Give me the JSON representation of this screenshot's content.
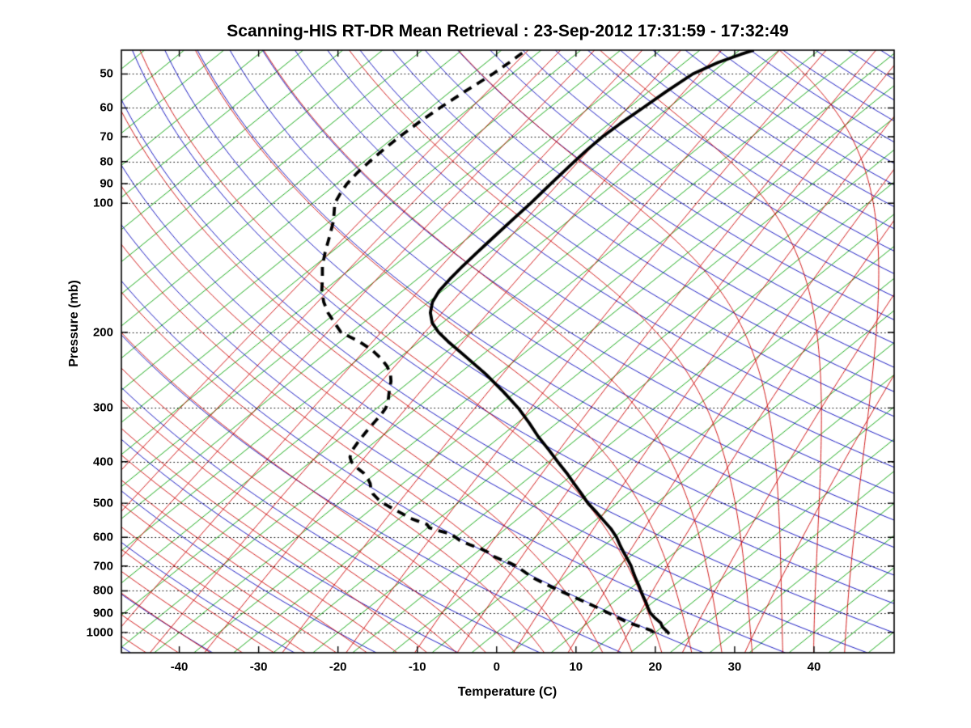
{
  "header": {
    "title": "Scanning-HIS RT-DR Mean Retrieval : 23-Sep-2012 17:31:59 - 17:32:49"
  },
  "axes": {
    "x_label": "Temperature (C)",
    "y_label": "Pressure (mb)"
  },
  "chart_data": {
    "type": "line",
    "diagram": "skew-t-log-p",
    "title": "Scanning-HIS RT-DR Mean Retrieval : 23-Sep-2012 17:31:59 - 17:32:49",
    "xlabel": "Temperature (C)",
    "ylabel": "Pressure (mb)",
    "x_ticks_c": [
      -40,
      -30,
      -20,
      -10,
      0,
      10,
      20,
      30,
      40
    ],
    "pressure_ticks_mb": [
      50,
      60,
      70,
      80,
      90,
      100,
      200,
      300,
      400,
      500,
      600,
      700,
      800,
      900,
      1000
    ],
    "xlim_c_at_1000mb": [
      -47.3,
      50.1
    ],
    "plim_mb": [
      44,
      1115
    ],
    "skew_c_per_decade": 66.8,
    "grid": {
      "pressure_lines_style": "dotted",
      "color": "#000000"
    },
    "background": {
      "isotherms_c": {
        "min": -150,
        "max": 55,
        "step": 5,
        "color": "#00A000"
      },
      "dry_adiabats_theta_c": {
        "min": -60,
        "max": 300,
        "step": 10,
        "color": "#0000BB"
      },
      "moist_adiabats_thetaw_c": {
        "min": -56,
        "max": 44,
        "step": 4,
        "color": "#CC0000"
      },
      "mixing_ratio_g_kg": {
        "values": [
          0.005,
          0.01,
          0.02,
          0.05,
          0.1,
          0.2,
          0.5,
          1,
          2,
          3,
          5,
          8,
          12,
          20,
          32
        ],
        "color": "#CC0000"
      }
    },
    "series": [
      {
        "name": "temperature",
        "style": "solid",
        "color": "#000000",
        "width": 3.8,
        "dash": [],
        "points": [
          [
            1008,
            22.0
          ],
          [
            1000,
            21.6
          ],
          [
            985,
            20.8
          ],
          [
            970,
            20.0
          ],
          [
            950,
            19.2
          ],
          [
            925,
            17.7
          ],
          [
            900,
            16.3
          ],
          [
            875,
            15.2
          ],
          [
            850,
            14.1
          ],
          [
            825,
            12.9
          ],
          [
            800,
            11.7
          ],
          [
            775,
            10.5
          ],
          [
            750,
            9.2
          ],
          [
            725,
            7.9
          ],
          [
            700,
            6.6
          ],
          [
            675,
            5.1
          ],
          [
            650,
            3.5
          ],
          [
            625,
            1.9
          ],
          [
            600,
            0.3
          ],
          [
            575,
            -1.6
          ],
          [
            550,
            -3.8
          ],
          [
            525,
            -6.1
          ],
          [
            500,
            -8.6
          ],
          [
            475,
            -10.9
          ],
          [
            450,
            -13.4
          ],
          [
            425,
            -16.0
          ],
          [
            400,
            -18.9
          ],
          [
            375,
            -21.9
          ],
          [
            350,
            -25.2
          ],
          [
            325,
            -28.5
          ],
          [
            300,
            -32.2
          ],
          [
            275,
            -36.6
          ],
          [
            250,
            -41.6
          ],
          [
            225,
            -47.5
          ],
          [
            210,
            -51.4
          ],
          [
            200,
            -54.0
          ],
          [
            190,
            -56.3
          ],
          [
            180,
            -58.1
          ],
          [
            170,
            -59.5
          ],
          [
            160,
            -60.4
          ],
          [
            150,
            -60.9
          ],
          [
            140,
            -61.3
          ],
          [
            130,
            -61.6
          ],
          [
            120,
            -61.9
          ],
          [
            110,
            -62.2
          ],
          [
            100,
            -62.5
          ],
          [
            90,
            -63.0
          ],
          [
            80,
            -63.5
          ],
          [
            75,
            -63.7
          ],
          [
            70,
            -63.8
          ],
          [
            65,
            -63.6
          ],
          [
            60,
            -63.2
          ],
          [
            55,
            -62.8
          ],
          [
            50,
            -62.2
          ],
          [
            47,
            -60.8
          ],
          [
            45,
            -59.2
          ],
          [
            44,
            -58.2
          ]
        ]
      },
      {
        "name": "dewpoint",
        "style": "dashed",
        "color": "#000000",
        "width": 3.8,
        "dash": [
          11,
          8
        ],
        "points": [
          [
            1000,
            19.8
          ],
          [
            990,
            19.2
          ],
          [
            975,
            17.8
          ],
          [
            950,
            15.2
          ],
          [
            925,
            13.1
          ],
          [
            900,
            11.0
          ],
          [
            875,
            8.8
          ],
          [
            850,
            6.5
          ],
          [
            825,
            4.0
          ],
          [
            800,
            1.5
          ],
          [
            775,
            -1.0
          ],
          [
            750,
            -3.5
          ],
          [
            725,
            -5.7
          ],
          [
            700,
            -7.9
          ],
          [
            690,
            -9.0
          ],
          [
            675,
            -11.0
          ],
          [
            660,
            -12.8
          ],
          [
            650,
            -13.6
          ],
          [
            640,
            -14.8
          ],
          [
            625,
            -17.0
          ],
          [
            610,
            -19.0
          ],
          [
            600,
            -20.0
          ],
          [
            590,
            -21.0
          ],
          [
            580,
            -23.0
          ],
          [
            570,
            -24.8
          ],
          [
            560,
            -25.6
          ],
          [
            550,
            -27.3
          ],
          [
            540,
            -29.0
          ],
          [
            530,
            -30.2
          ],
          [
            520,
            -31.6
          ],
          [
            510,
            -33.0
          ],
          [
            500,
            -34.4
          ],
          [
            490,
            -35.6
          ],
          [
            475,
            -37.2
          ],
          [
            460,
            -38.4
          ],
          [
            450,
            -39.1
          ],
          [
            440,
            -40.0
          ],
          [
            425,
            -41.6
          ],
          [
            415,
            -43.0
          ],
          [
            400,
            -44.9
          ],
          [
            390,
            -45.8
          ],
          [
            375,
            -46.6
          ],
          [
            360,
            -47.1
          ],
          [
            350,
            -47.4
          ],
          [
            340,
            -47.7
          ],
          [
            325,
            -48.1
          ],
          [
            310,
            -48.5
          ],
          [
            300,
            -48.9
          ],
          [
            290,
            -49.6
          ],
          [
            275,
            -51.0
          ],
          [
            260,
            -52.4
          ],
          [
            250,
            -53.6
          ],
          [
            240,
            -55.2
          ],
          [
            230,
            -57.2
          ],
          [
            220,
            -59.6
          ],
          [
            210,
            -62.6
          ],
          [
            200,
            -66.3
          ],
          [
            190,
            -68.6
          ],
          [
            180,
            -71.0
          ],
          [
            170,
            -73.2
          ],
          [
            160,
            -75.2
          ],
          [
            150,
            -77.0
          ],
          [
            140,
            -79.0
          ],
          [
            130,
            -80.8
          ],
          [
            120,
            -82.6
          ],
          [
            110,
            -84.6
          ],
          [
            100,
            -87.2
          ],
          [
            95,
            -88.0
          ],
          [
            90,
            -88.7
          ],
          [
            85,
            -89.1
          ],
          [
            80,
            -89.3
          ],
          [
            75,
            -89.4
          ],
          [
            70,
            -89.4
          ],
          [
            65,
            -89.2
          ],
          [
            60,
            -88.8
          ],
          [
            55,
            -88.2
          ],
          [
            50,
            -87.4
          ],
          [
            47,
            -87.1
          ],
          [
            44,
            -86.9
          ]
        ]
      }
    ]
  }
}
